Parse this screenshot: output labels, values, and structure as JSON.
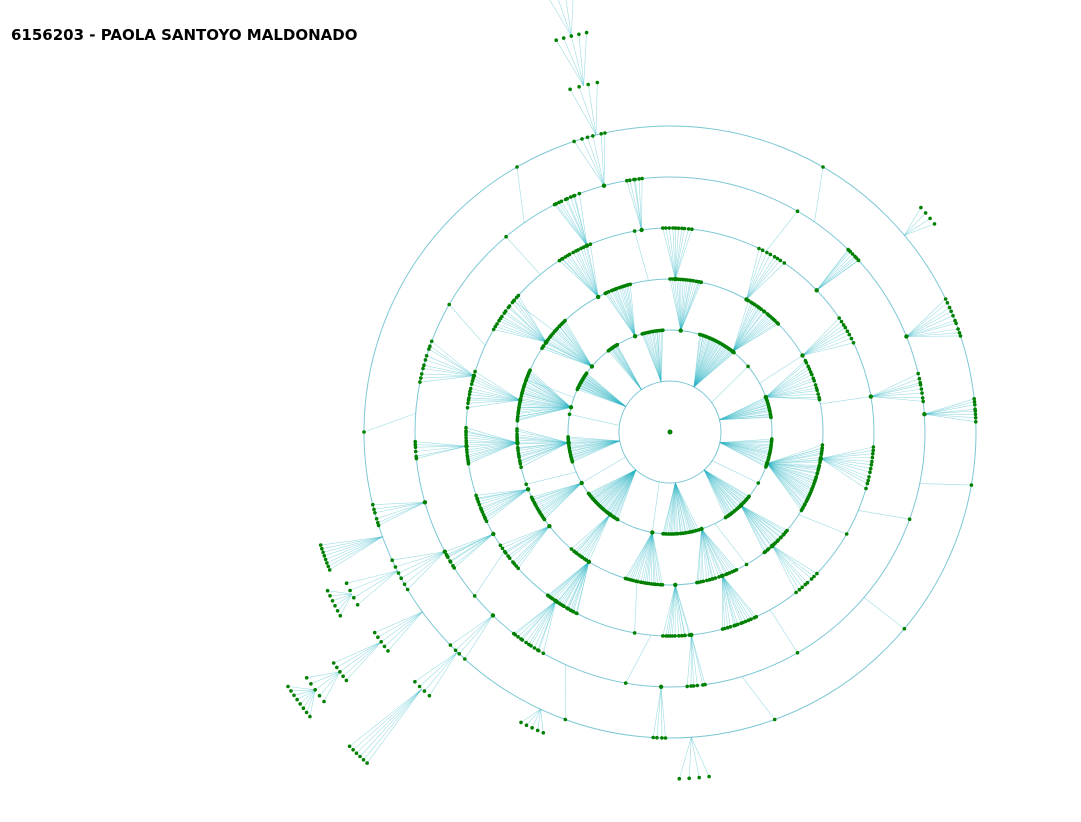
{
  "title": "6156203 - PAOLA SANTOYO MALDONADO",
  "diagram": {
    "type": "radial-tree",
    "ring_count": 6,
    "colors": {
      "ring": "#7ec8d4",
      "edge": "#27b3c3",
      "node": "#008000",
      "background": "#ffffff"
    },
    "clusters": [
      {
        "ring": 2,
        "angle": -150,
        "span": 10,
        "count": 22
      },
      {
        "ring": 2,
        "angle": -124,
        "span": 6,
        "count": 10
      },
      {
        "ring": 2,
        "angle": -100,
        "span": 12,
        "count": 14
      },
      {
        "ring": 2,
        "angle": -62,
        "span": 22,
        "count": 30
      },
      {
        "ring": 2,
        "angle": -14,
        "span": 12,
        "count": 16
      },
      {
        "ring": 2,
        "angle": 12,
        "span": 16,
        "count": 18
      },
      {
        "ring": 2,
        "angle": 48,
        "span": 18,
        "count": 22
      },
      {
        "ring": 2,
        "angle": 84,
        "span": 20,
        "count": 22
      },
      {
        "ring": 2,
        "angle": 132,
        "span": 22,
        "count": 30
      },
      {
        "ring": 2,
        "angle": 170,
        "span": 14,
        "count": 18
      },
      {
        "ring": 3,
        "angle": -166,
        "span": 20,
        "count": 30
      },
      {
        "ring": 3,
        "angle": -140,
        "span": 14,
        "count": 20
      },
      {
        "ring": 3,
        "angle": -110,
        "span": 10,
        "count": 14
      },
      {
        "ring": 3,
        "angle": -84,
        "span": 12,
        "count": 16
      },
      {
        "ring": 3,
        "angle": -52,
        "span": 14,
        "count": 18
      },
      {
        "ring": 3,
        "angle": -20,
        "span": 16,
        "count": 14
      },
      {
        "ring": 3,
        "angle": 18,
        "span": 26,
        "count": 36
      },
      {
        "ring": 3,
        "angle": 46,
        "span": 12,
        "count": 16
      },
      {
        "ring": 3,
        "angle": 72,
        "span": 16,
        "count": 18
      },
      {
        "ring": 3,
        "angle": 100,
        "span": 14,
        "count": 18
      },
      {
        "ring": 3,
        "angle": 126,
        "span": 8,
        "count": 10
      },
      {
        "ring": 3,
        "angle": 150,
        "span": 10,
        "count": 14
      },
      {
        "ring": 3,
        "angle": 174,
        "span": 14,
        "count": 18
      },
      {
        "ring": 4,
        "angle": -168,
        "span": 10,
        "count": 12
      },
      {
        "ring": 4,
        "angle": -144,
        "span": 12,
        "count": 14
      },
      {
        "ring": 4,
        "angle": -118,
        "span": 10,
        "count": 14
      },
      {
        "ring": 4,
        "angle": -88,
        "span": 8,
        "count": 10
      },
      {
        "ring": 4,
        "angle": -60,
        "span": 8,
        "count": 8
      },
      {
        "ring": 4,
        "angle": -30,
        "span": 8,
        "count": 8
      },
      {
        "ring": 4,
        "angle": 10,
        "span": 12,
        "count": 12
      },
      {
        "ring": 4,
        "angle": 48,
        "span": 8,
        "count": 8
      },
      {
        "ring": 4,
        "angle": 70,
        "span": 10,
        "count": 14
      },
      {
        "ring": 4,
        "angle": 88,
        "span": 8,
        "count": 12
      },
      {
        "ring": 4,
        "angle": 122,
        "span": 10,
        "count": 20
      },
      {
        "ring": 4,
        "angle": 142,
        "span": 8,
        "count": 10
      },
      {
        "ring": 4,
        "angle": 158,
        "span": 8,
        "count": 12
      },
      {
        "ring": 4,
        "angle": 176,
        "span": 10,
        "count": 16
      },
      {
        "ring": 5,
        "angle": -164,
        "span": 10,
        "count": 10
      },
      {
        "ring": 5,
        "angle": -114,
        "span": 6,
        "count": 10
      },
      {
        "ring": 5,
        "angle": -98,
        "span": 4,
        "count": 6
      },
      {
        "ring": 5,
        "angle": -44,
        "span": 4,
        "count": 8
      },
      {
        "ring": 5,
        "angle": -10,
        "span": 6,
        "count": 8
      },
      {
        "ring": 5,
        "angle": 84,
        "span": 4,
        "count": 6
      },
      {
        "ring": 5,
        "angle": 124,
        "span": 8,
        "count": 12
      },
      {
        "ring": 5,
        "angle": 150,
        "span": 4,
        "count": 8
      },
      {
        "ring": 5,
        "angle": 176,
        "span": 4,
        "count": 6
      },
      {
        "ring": 6,
        "angle": -105,
        "span": 6,
        "count": 6
      },
      {
        "ring": 6,
        "angle": -22,
        "span": 8,
        "count": 10
      },
      {
        "ring": 6,
        "angle": -4,
        "span": 4,
        "count": 8
      },
      {
        "ring": 6,
        "angle": 92,
        "span": 2,
        "count": 4
      },
      {
        "ring": 6,
        "angle": 134,
        "span": 4,
        "count": 4
      },
      {
        "ring": 6,
        "angle": 152,
        "span": 6,
        "count": 6
      },
      {
        "ring": 6,
        "angle": 164,
        "span": 4,
        "count": 6
      }
    ],
    "branches": [
      {
        "angle": -104,
        "rings": [
          7,
          8,
          9
        ]
      },
      {
        "angle": -40,
        "rings": [
          6.6
        ]
      },
      {
        "angle": 144,
        "rings": [
          7,
          8,
          8.6,
          9
        ]
      },
      {
        "angle": 153,
        "rings": [
          7,
          7.4
        ]
      },
      {
        "angle": 134,
        "rings": [
          7,
          8.8
        ]
      },
      {
        "angle": 115,
        "rings": [
          6.4
        ]
      },
      {
        "angle": 86,
        "rings": [
          6.8
        ]
      },
      {
        "angle": 160,
        "rings": [
          7.2
        ]
      }
    ]
  }
}
